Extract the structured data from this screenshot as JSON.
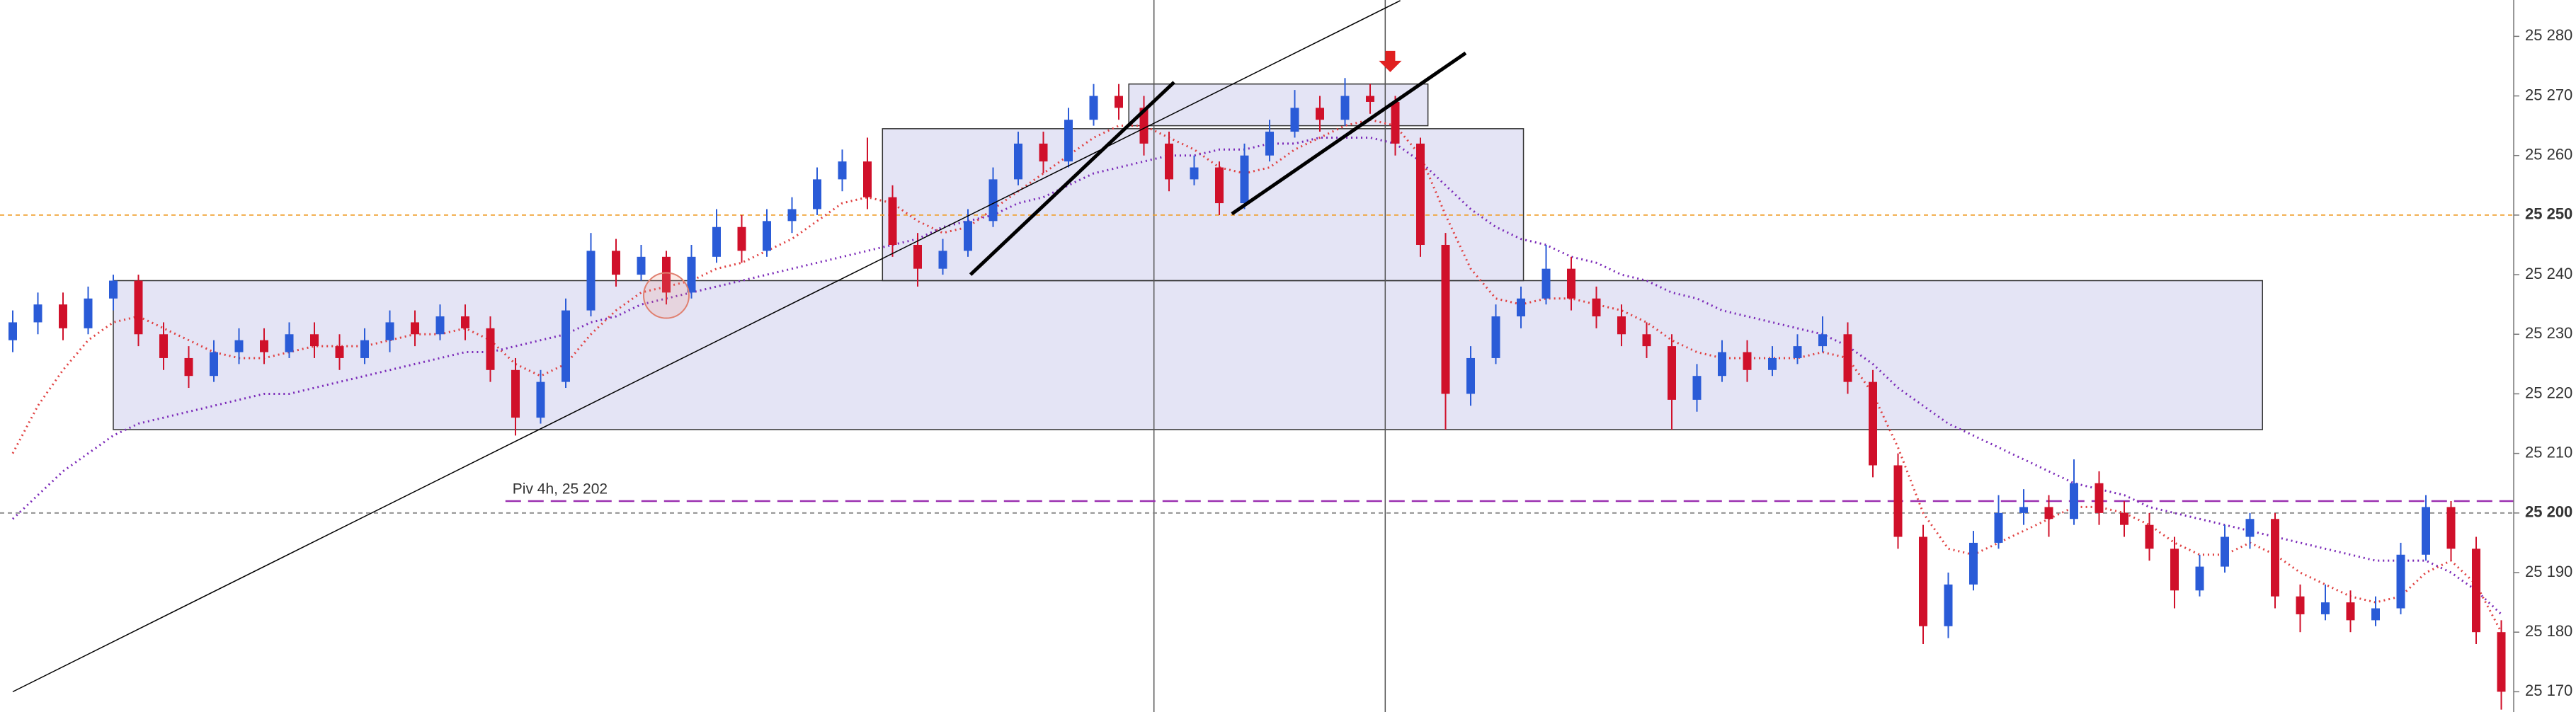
{
  "chart_data": {
    "type": "candlestick",
    "up_color": "#2a5bd7",
    "down_color": "#d0102a",
    "ylim": [
      25166.6,
      25286.1
    ],
    "yticks": [
      {
        "value": 25170,
        "label": "25 170"
      },
      {
        "value": 25180,
        "label": "25 180"
      },
      {
        "value": 25190,
        "label": "25 190"
      },
      {
        "value": 25200,
        "label": "25 200"
      },
      {
        "value": 25210,
        "label": "25 210"
      },
      {
        "value": 25220,
        "label": "25 220"
      },
      {
        "value": 25230,
        "label": "25 230"
      },
      {
        "value": 25240,
        "label": "25 240"
      },
      {
        "value": 25250,
        "label": "25 250"
      },
      {
        "value": 25260,
        "label": "25 260"
      },
      {
        "value": 25270,
        "label": "25 270"
      },
      {
        "value": 25280,
        "label": "25 280"
      }
    ],
    "ohlc": [
      [
        25229,
        25234,
        25227,
        25232
      ],
      [
        25232,
        25237,
        25230,
        25235
      ],
      [
        25235,
        25237,
        25229,
        25231
      ],
      [
        25231,
        25238,
        25230,
        25236
      ],
      [
        25236,
        25240,
        25234,
        25239
      ],
      [
        25239,
        25240,
        25228,
        25230
      ],
      [
        25230,
        25232,
        25224,
        25226
      ],
      [
        25226,
        25228,
        25221,
        25223
      ],
      [
        25223,
        25229,
        25222,
        25227
      ],
      [
        25227,
        25231,
        25225,
        25229
      ],
      [
        25229,
        25231,
        25225,
        25227
      ],
      [
        25227,
        25232,
        25226,
        25230
      ],
      [
        25230,
        25232,
        25226,
        25228
      ],
      [
        25228,
        25230,
        25224,
        25226
      ],
      [
        25226,
        25231,
        25225,
        25229
      ],
      [
        25229,
        25234,
        25227,
        25232
      ],
      [
        25232,
        25234,
        25228,
        25230
      ],
      [
        25230,
        25235,
        25229,
        25233
      ],
      [
        25233,
        25235,
        25229,
        25231
      ],
      [
        25231,
        25233,
        25222,
        25224
      ],
      [
        25224,
        25226,
        25213,
        25216
      ],
      [
        25216,
        25224,
        25215,
        25222
      ],
      [
        25222,
        25236,
        25221,
        25234
      ],
      [
        25234,
        25247,
        25233,
        25244
      ],
      [
        25244,
        25246,
        25238,
        25240
      ],
      [
        25240,
        25245,
        25239,
        25243
      ],
      [
        25243,
        25244,
        25235,
        25237
      ],
      [
        25237,
        25245,
        25236,
        25243
      ],
      [
        25243,
        25251,
        25242,
        25248
      ],
      [
        25248,
        25250,
        25242,
        25244
      ],
      [
        25244,
        25251,
        25243,
        25249
      ],
      [
        25249,
        25253,
        25247,
        25251
      ],
      [
        25251,
        25258,
        25250,
        25256
      ],
      [
        25256,
        25261,
        25254,
        25259
      ],
      [
        25259,
        25263,
        25251,
        25253
      ],
      [
        25253,
        25255,
        25243,
        25245
      ],
      [
        25245,
        25247,
        25238,
        25241
      ],
      [
        25241,
        25246,
        25240,
        25244
      ],
      [
        25244,
        25251,
        25243,
        25249
      ],
      [
        25249,
        25258,
        25248,
        25256
      ],
      [
        25256,
        25264,
        25255,
        25262
      ],
      [
        25262,
        25264,
        25257,
        25259
      ],
      [
        25259,
        25268,
        25258,
        25266
      ],
      [
        25266,
        25272,
        25265,
        25270
      ],
      [
        25270,
        25272,
        25266,
        25268
      ],
      [
        25268,
        25270,
        25260,
        25262
      ],
      [
        25262,
        25264,
        25254,
        25256
      ],
      [
        25256,
        25260,
        25255,
        25258
      ],
      [
        25258,
        25259,
        25250,
        25252
      ],
      [
        25252,
        25262,
        25251,
        25260
      ],
      [
        25260,
        25266,
        25259,
        25264
      ],
      [
        25264,
        25271,
        25263,
        25268
      ],
      [
        25268,
        25270,
        25264,
        25266
      ],
      [
        25266,
        25273,
        25265,
        25270
      ],
      [
        25270,
        25272,
        25267,
        25269
      ],
      [
        25269,
        25270,
        25260,
        25262
      ],
      [
        25262,
        25263,
        25243,
        25245
      ],
      [
        25245,
        25247,
        25214,
        25220
      ],
      [
        25220,
        25228,
        25218,
        25226
      ],
      [
        25226,
        25235,
        25225,
        25233
      ],
      [
        25233,
        25238,
        25231,
        25236
      ],
      [
        25236,
        25245,
        25235,
        25241
      ],
      [
        25241,
        25243,
        25234,
        25236
      ],
      [
        25236,
        25238,
        25231,
        25233
      ],
      [
        25233,
        25235,
        25228,
        25230
      ],
      [
        25230,
        25232,
        25226,
        25228
      ],
      [
        25228,
        25230,
        25214,
        25219
      ],
      [
        25219,
        25225,
        25217,
        25223
      ],
      [
        25223,
        25229,
        25222,
        25227
      ],
      [
        25227,
        25229,
        25222,
        25224
      ],
      [
        25224,
        25228,
        25223,
        25226
      ],
      [
        25226,
        25230,
        25225,
        25228
      ],
      [
        25228,
        25233,
        25227,
        25230
      ],
      [
        25230,
        25232,
        25220,
        25222
      ],
      [
        25222,
        25224,
        25206,
        25208
      ],
      [
        25208,
        25210,
        25194,
        25196
      ],
      [
        25196,
        25198,
        25178,
        25181
      ],
      [
        25181,
        25190,
        25179,
        25188
      ],
      [
        25188,
        25197,
        25187,
        25195
      ],
      [
        25195,
        25203,
        25194,
        25200
      ],
      [
        25200,
        25204,
        25198,
        25201
      ],
      [
        25201,
        25203,
        25196,
        25199
      ],
      [
        25199,
        25209,
        25198,
        25205
      ],
      [
        25205,
        25207,
        25198,
        25200
      ],
      [
        25200,
        25202,
        25196,
        25198
      ],
      [
        25198,
        25200,
        25192,
        25194
      ],
      [
        25194,
        25196,
        25184,
        25187
      ],
      [
        25187,
        25193,
        25186,
        25191
      ],
      [
        25191,
        25198,
        25190,
        25196
      ],
      [
        25196,
        25200,
        25194,
        25199
      ],
      [
        25199,
        25200,
        25184,
        25186
      ],
      [
        25186,
        25188,
        25180,
        25183
      ],
      [
        25183,
        25188,
        25182,
        25185
      ],
      [
        25185,
        25187,
        25180,
        25182
      ],
      [
        25182,
        25186,
        25181,
        25184
      ],
      [
        25184,
        25195,
        25183,
        25193
      ],
      [
        25193,
        25203,
        25192,
        25201
      ],
      [
        25201,
        25202,
        25192,
        25194
      ],
      [
        25194,
        25196,
        25178,
        25180
      ],
      [
        25180,
        25182,
        25167,
        25170
      ]
    ],
    "averages": [
      {
        "color": "#e04040",
        "values": [
          25210,
          25218,
          25224,
          25229,
          25232,
          25233,
          25231,
          25229,
          25227,
          25226,
          25226,
          25227,
          25228,
          25228,
          25228,
          25229,
          25230,
          25230,
          25231,
          25229,
          25225,
          25223,
          25225,
          25230,
          25234,
          25237,
          25238,
          25239,
          25241,
          25242,
          25244,
          25246,
          25249,
          25252,
          25253,
          25252,
          25249,
          25247,
          25248,
          25251,
          25254,
          25257,
          25260,
          25263,
          25265,
          25265,
          25263,
          25261,
          25258,
          25257,
          25258,
          25261,
          25263,
          25265,
          25266,
          25265,
          25260,
          25250,
          25241,
          25236,
          25235,
          25236,
          25236,
          25235,
          25234,
          25232,
          25229,
          25227,
          25226,
          25226,
          25226,
          25226,
          25227,
          25226,
          25220,
          25211,
          25200,
          25194,
          25193,
          25195,
          25197,
          25199,
          25201,
          25201,
          25200,
          25198,
          25195,
          25193,
          25193,
          25195,
          25193,
          25190,
          25188,
          25186,
          25185,
          25186,
          25190,
          25192,
          25188,
          25180
        ]
      },
      {
        "color": "#7a28b8",
        "values": [
          25199,
          25203,
          25207,
          25210,
          25213,
          25215,
          25216,
          25217,
          25218,
          25219,
          25220,
          25220,
          25221,
          25222,
          25223,
          25224,
          25225,
          25226,
          25227,
          25227,
          25228,
          25229,
          25230,
          25232,
          25233,
          25235,
          25236,
          25237,
          25238,
          25239,
          25240,
          25241,
          25242,
          25243,
          25244,
          25245,
          25246,
          25248,
          25249,
          25250,
          25252,
          25253,
          25255,
          25257,
          25258,
          25259,
          25260,
          25260,
          25261,
          25261,
          25262,
          25262,
          25263,
          25263,
          25263,
          25262,
          25259,
          25255,
          25251,
          25248,
          25246,
          25245,
          25243,
          25242,
          25240,
          25239,
          25237,
          25236,
          25234,
          25233,
          25232,
          25231,
          25230,
          25228,
          25225,
          25221,
          25218,
          25215,
          25213,
          25211,
          25209,
          25207,
          25205,
          25204,
          25203,
          25201,
          25200,
          25199,
          25198,
          25197,
          25196,
          25195,
          25194,
          25193,
          25192,
          25192,
          25192,
          25190,
          25187,
          25183
        ]
      }
    ],
    "zones": [
      {
        "start": 4,
        "end": 89.5,
        "low": 25214,
        "high": 25239
      },
      {
        "start": 34.6,
        "end": 60.1,
        "low": 25239,
        "high": 25264.5
      },
      {
        "start": 44.4,
        "end": 56.3,
        "low": 25265,
        "high": 25272
      }
    ],
    "trendlines": [
      {
        "x0": 0,
        "y0": 25170,
        "x1": 55.2,
        "y1": 25286,
        "width": 1.5
      },
      {
        "x0": 38.1,
        "y0": 25240,
        "x1": 46.2,
        "y1": 25272.3,
        "width": 5
      },
      {
        "x0": 48.5,
        "y0": 25250.2,
        "x1": 57.8,
        "y1": 25277.2,
        "width": 5
      }
    ],
    "hlines": [
      {
        "value": 25250,
        "color": "#f0a030"
      },
      {
        "value": 25200,
        "color": "#888888"
      },
      {
        "value": 25202,
        "color": "#9b30b0",
        "start": 19.6,
        "label": "Piv 4h, 25 202"
      }
    ],
    "vlines": [
      45.4,
      54.6
    ],
    "markers": [
      {
        "type": "circle",
        "x": 26,
        "y": 25236.5,
        "color": "#e08070"
      },
      {
        "type": "arrow",
        "x": 54.8,
        "y": 25274,
        "color": "#e02020"
      }
    ]
  }
}
